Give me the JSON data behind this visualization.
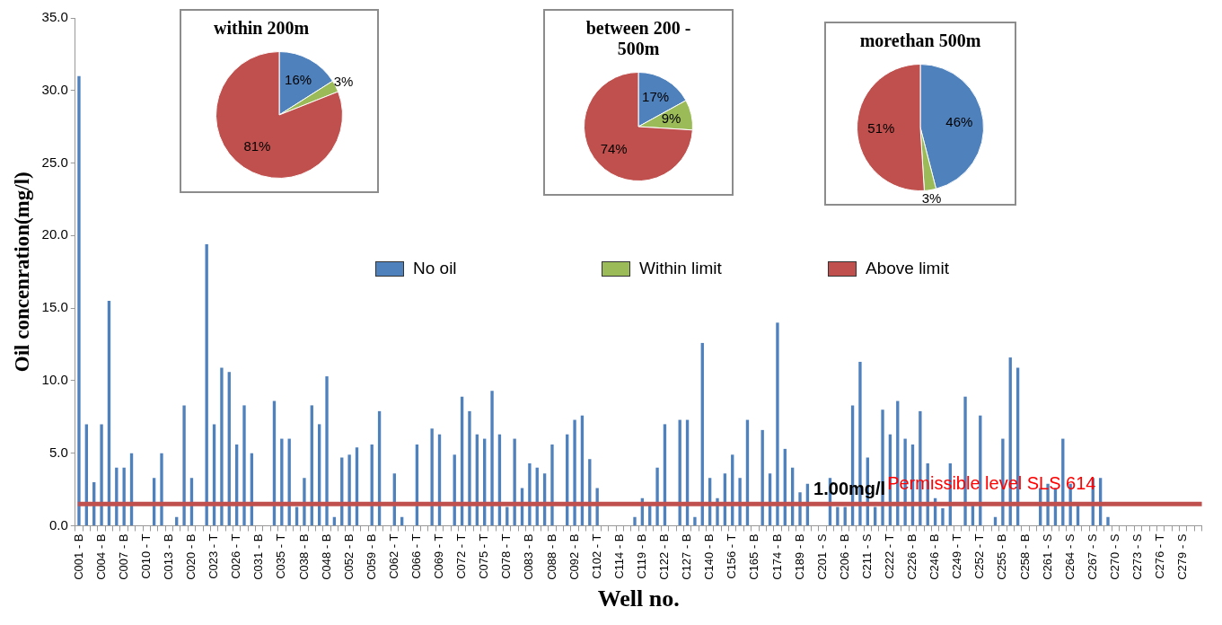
{
  "chart_data": [
    {
      "type": "bar",
      "xlabel": "Well no.",
      "ylabel": "Oil concenration(mg/l)",
      "color": "#4f81bd",
      "grid": false,
      "legend": false,
      "categories": [
        "C001 - B",
        null,
        null,
        "C004 - B",
        null,
        null,
        "C007 - B",
        null,
        null,
        "C010 - T",
        null,
        null,
        "C013 - B",
        null,
        null,
        "C020 - B",
        null,
        null,
        "C023 - T",
        null,
        null,
        "C026 - T",
        null,
        null,
        "C031 - B",
        null,
        null,
        "C035 - T",
        null,
        null,
        "C038 - B",
        null,
        null,
        "C048 - B",
        null,
        null,
        "C052 - B",
        null,
        null,
        "C059 - B",
        null,
        null,
        "C062 - T",
        null,
        null,
        "C066 - T",
        null,
        null,
        "C069 - T",
        null,
        null,
        "C072 - T",
        null,
        null,
        "C075 - T",
        null,
        null,
        "C078 - T",
        null,
        null,
        "C083 - B",
        null,
        null,
        "C088 - B",
        null,
        null,
        "C092 - B",
        null,
        null,
        "C102 - T",
        null,
        null,
        "C114 - B",
        null,
        null,
        "C119 - B",
        null,
        null,
        "C122 - B",
        null,
        null,
        "C127 - B",
        null,
        null,
        "C140 - B",
        null,
        null,
        "C156 - T",
        null,
        null,
        "C165 - B",
        null,
        null,
        "C174 - B",
        null,
        null,
        "C189 - B",
        null,
        null,
        "C201 - S",
        null,
        null,
        "C206 - B",
        null,
        null,
        "C211 - S",
        null,
        null,
        "C222 - T",
        null,
        null,
        "C226 - B",
        null,
        null,
        "C246 - B",
        null,
        null,
        "C249 - T",
        null,
        null,
        "C252 - T",
        null,
        null,
        "C255 - B",
        null,
        null,
        "C258 - B",
        null,
        null,
        "C261 - S",
        null,
        null,
        "C264 - S",
        null,
        null,
        "C267 - S",
        null,
        null,
        "C270 - S",
        null,
        null,
        "C273 - S",
        null,
        null,
        "C276 - T",
        null,
        null,
        "C279 - S",
        null,
        null
      ],
      "values": [
        31.0,
        7.0,
        3.0,
        7.0,
        15.5,
        4.0,
        4.0,
        5.0,
        0,
        0,
        3.3,
        5.0,
        0,
        0.6,
        8.3,
        3.3,
        0,
        19.4,
        7.0,
        10.9,
        10.6,
        5.6,
        8.3,
        5.0,
        0,
        0,
        8.6,
        6.0,
        6.0,
        1.3,
        3.3,
        8.3,
        7.0,
        10.3,
        0.6,
        4.7,
        4.9,
        5.4,
        0,
        5.6,
        7.9,
        0,
        3.6,
        0.6,
        0,
        5.6,
        0,
        6.7,
        6.3,
        0,
        4.9,
        8.9,
        7.9,
        6.3,
        6.0,
        9.3,
        6.3,
        1.3,
        6.0,
        2.6,
        4.3,
        4.0,
        3.6,
        5.6,
        0,
        6.3,
        7.3,
        7.6,
        4.6,
        2.6,
        0,
        0,
        0,
        0,
        0.6,
        1.9,
        1.4,
        4.0,
        7.0,
        0,
        7.3,
        7.3,
        0.6,
        12.6,
        3.3,
        1.9,
        3.6,
        4.9,
        3.3,
        7.3,
        0,
        6.6,
        3.6,
        14.0,
        5.3,
        4.0,
        2.3,
        2.9,
        0,
        0,
        3.3,
        1.3,
        1.3,
        8.3,
        11.3,
        4.7,
        1.3,
        8.0,
        6.3,
        8.6,
        6.0,
        5.6,
        7.9,
        4.3,
        1.9,
        1.2,
        4.3,
        0,
        8.9,
        1.5,
        7.6,
        0,
        0.6,
        6.0,
        11.6,
        10.9,
        0,
        0,
        2.6,
        2.9,
        2.6,
        6.0,
        2.9,
        1.5,
        0,
        3.3,
        3.3,
        0.6,
        0,
        0,
        0,
        0,
        0,
        0,
        0,
        0,
        0,
        0,
        0,
        0
      ],
      "ylim": [
        0,
        35
      ],
      "yticks": [
        {
          "value": 0,
          "label": "0.0"
        },
        {
          "value": 5,
          "label": "5.0"
        },
        {
          "value": 10,
          "label": "10.0"
        },
        {
          "value": 15,
          "label": "15.0"
        },
        {
          "value": 20,
          "label": "20.0"
        },
        {
          "value": 25,
          "label": "25.0"
        },
        {
          "value": 30,
          "label": "30.0"
        },
        {
          "value": 35,
          "label": "35.0"
        }
      ],
      "ref_lines": [
        {
          "axis": "y",
          "value": 1.5,
          "label": "Permissible level SLS 614",
          "color": "#c0504d"
        }
      ],
      "annotations": [
        {
          "text": "1.00mg/l",
          "x": "C201 - S",
          "y": 1.5
        }
      ]
    },
    {
      "type": "pie",
      "title": "within  200m",
      "categories": [
        "No oil",
        "Within limit",
        "Above limit"
      ],
      "values": [
        16,
        3,
        81
      ],
      "colors": [
        "#4f81bd",
        "#9bbb59",
        "#c0504d"
      ],
      "value_labels": [
        "16%",
        "3%",
        "81%"
      ],
      "legend": "bottom"
    },
    {
      "type": "pie",
      "title": "between 200 - 500m",
      "categories": [
        null,
        null,
        null
      ],
      "values": [
        17,
        9,
        74
      ],
      "colors": [
        "#4f81bd",
        "#9bbb59",
        "#c0504d"
      ],
      "value_labels": [
        "17%",
        "9%",
        "74%"
      ]
    },
    {
      "type": "pie",
      "title": "morethan  500m",
      "categories": [
        null,
        null,
        null
      ],
      "values": [
        46,
        3,
        51
      ],
      "colors": [
        "#4f81bd",
        "#9bbb59",
        "#c0504d"
      ],
      "value_labels": [
        "46%",
        "3%",
        "51%"
      ]
    }
  ]
}
